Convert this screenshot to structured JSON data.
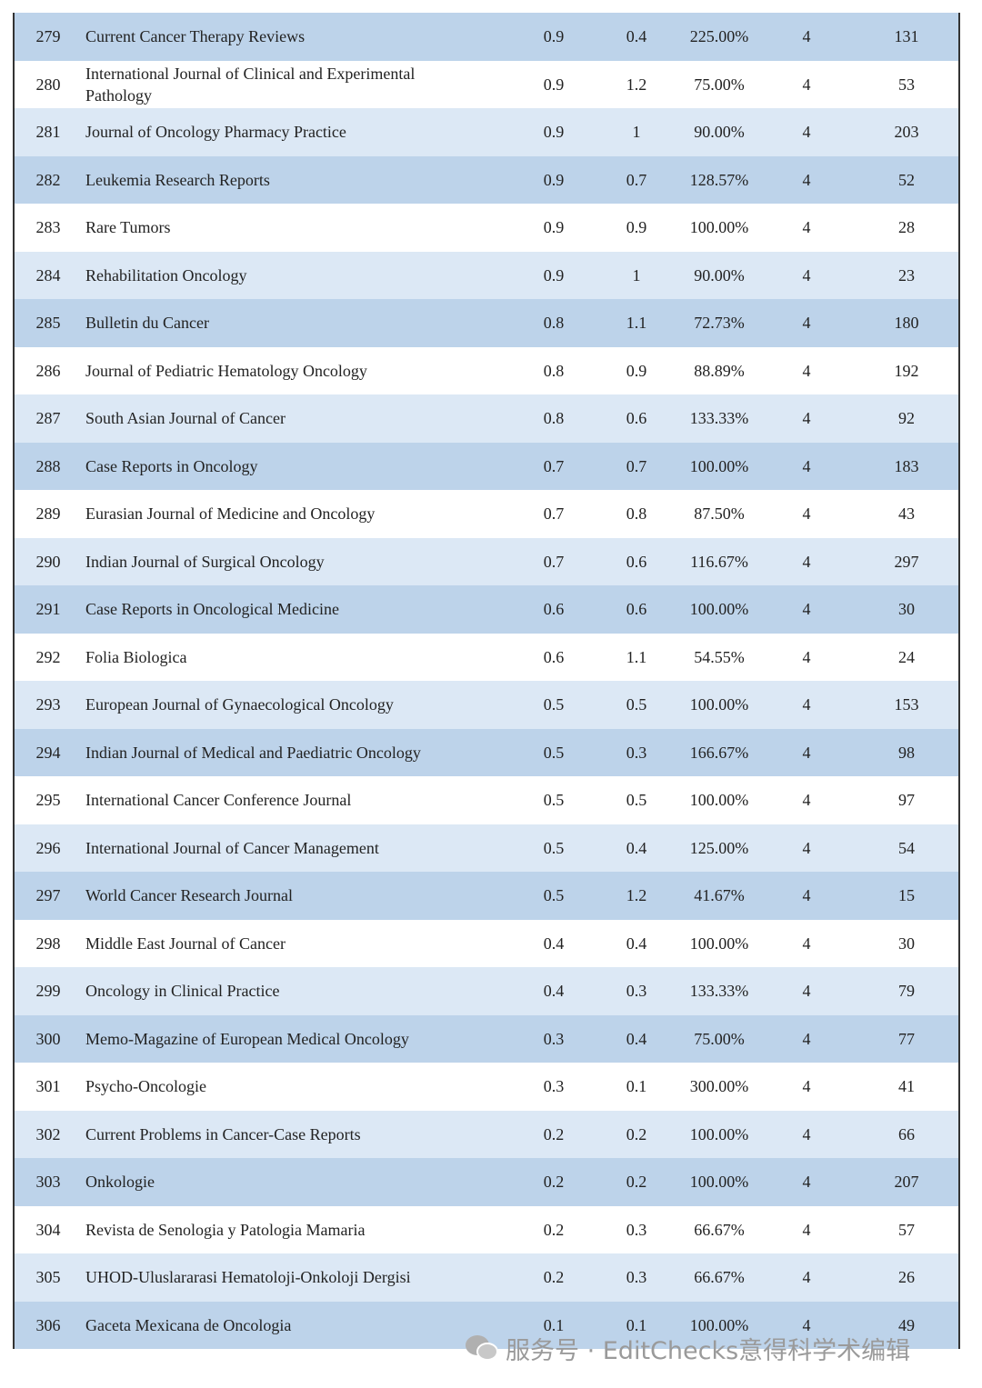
{
  "table": {
    "rows": [
      [
        279,
        "Current Cancer Therapy Reviews",
        0.9,
        0.4,
        "225.00%",
        4,
        131
      ],
      [
        280,
        "International Journal of Clinical and Experimental Pathology",
        0.9,
        1.2,
        "75.00%",
        4,
        53
      ],
      [
        281,
        "Journal of Oncology Pharmacy Practice",
        0.9,
        1,
        "90.00%",
        4,
        203
      ],
      [
        282,
        "Leukemia Research Reports",
        0.9,
        0.7,
        "128.57%",
        4,
        52
      ],
      [
        283,
        "Rare Tumors",
        0.9,
        0.9,
        "100.00%",
        4,
        28
      ],
      [
        284,
        "Rehabilitation Oncology",
        0.9,
        1,
        "90.00%",
        4,
        23
      ],
      [
        285,
        "Bulletin du Cancer",
        0.8,
        1.1,
        "72.73%",
        4,
        180
      ],
      [
        286,
        "Journal of Pediatric Hematology Oncology",
        0.8,
        0.9,
        "88.89%",
        4,
        192
      ],
      [
        287,
        "South Asian Journal of Cancer",
        0.8,
        0.6,
        "133.33%",
        4,
        92
      ],
      [
        288,
        "Case Reports in Oncology",
        0.7,
        0.7,
        "100.00%",
        4,
        183
      ],
      [
        289,
        "Eurasian Journal of Medicine and Oncology",
        0.7,
        0.8,
        "87.50%",
        4,
        43
      ],
      [
        290,
        "Indian Journal of Surgical Oncology",
        0.7,
        0.6,
        "116.67%",
        4,
        297
      ],
      [
        291,
        "Case Reports in Oncological Medicine",
        0.6,
        0.6,
        "100.00%",
        4,
        30
      ],
      [
        292,
        "Folia Biologica",
        0.6,
        1.1,
        "54.55%",
        4,
        24
      ],
      [
        293,
        "European Journal of Gynaecological Oncology",
        0.5,
        0.5,
        "100.00%",
        4,
        153
      ],
      [
        294,
        "Indian Journal of Medical and Paediatric Oncology",
        0.5,
        0.3,
        "166.67%",
        4,
        98
      ],
      [
        295,
        "International Cancer Conference Journal",
        0.5,
        0.5,
        "100.00%",
        4,
        97
      ],
      [
        296,
        "International Journal of Cancer Management",
        0.5,
        0.4,
        "125.00%",
        4,
        54
      ],
      [
        297,
        "World Cancer Research Journal",
        0.5,
        1.2,
        "41.67%",
        4,
        15
      ],
      [
        298,
        "Middle East Journal of Cancer",
        0.4,
        0.4,
        "100.00%",
        4,
        30
      ],
      [
        299,
        "Oncology in Clinical Practice",
        0.4,
        0.3,
        "133.33%",
        4,
        79
      ],
      [
        300,
        "Memo-Magazine of European Medical Oncology",
        0.3,
        0.4,
        "75.00%",
        4,
        77
      ],
      [
        301,
        "Psycho-Oncologie",
        0.3,
        0.1,
        "300.00%",
        4,
        41
      ],
      [
        302,
        "Current Problems in Cancer-Case Reports",
        0.2,
        0.2,
        "100.00%",
        4,
        66
      ],
      [
        303,
        "Onkologie",
        0.2,
        0.2,
        "100.00%",
        4,
        207
      ],
      [
        304,
        "Revista de Senologia y Patologia Mamaria",
        0.2,
        0.3,
        "66.67%",
        4,
        57
      ],
      [
        305,
        "UHOD-Uluslararasi Hematoloji-Onkoloji Dergisi",
        0.2,
        0.3,
        "66.67%",
        4,
        26
      ],
      [
        306,
        "Gaceta Mexicana de Oncologia",
        0.1,
        0.1,
        "100.00%",
        4,
        49
      ]
    ]
  },
  "watermark": "服务号 · EditChecks意得科学术编辑"
}
